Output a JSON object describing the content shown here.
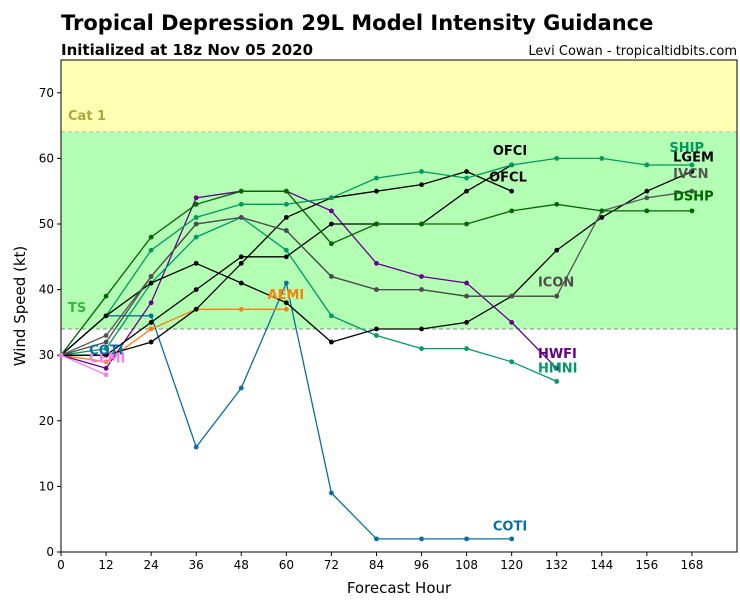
{
  "chart_data": {
    "type": "line",
    "title": "Tropical Depression 29L Model Intensity Guidance",
    "subtitle": "Initialized at 18z Nov 05 2020",
    "credit": "Levi Cowan - tropicaltidbits.com",
    "xlabel": "Forecast Hour",
    "ylabel": "Wind Speed (kt)",
    "xlim": [
      0,
      180
    ],
    "ylim": [
      0,
      75
    ],
    "xticks": [
      0,
      12,
      24,
      36,
      48,
      60,
      72,
      84,
      96,
      108,
      120,
      132,
      144,
      156,
      168
    ],
    "yticks": [
      0,
      10,
      20,
      30,
      40,
      50,
      60,
      70
    ],
    "bands": [
      {
        "label": "Cat 1",
        "from": 64,
        "to": 75,
        "color": "#ffffb3",
        "label_color": "#a9a93c"
      },
      {
        "label": "TS",
        "from": 34,
        "to": 64,
        "color": "#b3ffb3",
        "label_color": "#3cb33c"
      }
    ],
    "series": [
      {
        "name": "COTI",
        "color": "#0a6ea0",
        "x": [
          0,
          12,
          24,
          36,
          48,
          60,
          72,
          84,
          96,
          108,
          120
        ],
        "y": [
          30,
          36,
          36,
          16,
          25,
          41,
          9,
          2,
          2,
          2,
          2
        ]
      },
      {
        "name": "AEMI",
        "color": "#ff7f0e",
        "x": [
          0,
          12,
          24,
          36,
          48,
          60
        ],
        "y": [
          30,
          29,
          34,
          37,
          37,
          37
        ]
      },
      {
        "name": "HWFI",
        "color": "#66008c",
        "x": [
          0,
          12,
          24,
          36,
          48,
          60,
          72,
          84,
          96,
          108,
          120,
          132
        ],
        "y": [
          30,
          28,
          38,
          54,
          55,
          55,
          52,
          44,
          42,
          41,
          35,
          28
        ]
      },
      {
        "name": "HMNI",
        "color": "#009966",
        "x": [
          0,
          12,
          24,
          36,
          48,
          60,
          72,
          84,
          96,
          108,
          120,
          132
        ],
        "y": [
          30,
          31,
          41,
          48,
          51,
          46,
          36,
          33,
          31,
          31,
          29,
          26
        ]
      },
      {
        "name": "OFCI",
        "color": "#000000",
        "x": [
          0,
          12,
          24,
          36,
          48,
          60,
          72,
          84,
          96,
          108,
          120
        ],
        "y": [
          30,
          30,
          35,
          40,
          45,
          45,
          50,
          50,
          50,
          55,
          59
        ]
      },
      {
        "name": "OFCL",
        "color": "#000000",
        "x": [
          0,
          12,
          24,
          36,
          48,
          60,
          72,
          84,
          96,
          108,
          120
        ],
        "y": [
          30,
          30,
          32,
          37,
          44,
          51,
          54,
          55,
          56,
          58,
          55
        ]
      },
      {
        "name": "SHIP",
        "color": "#00995c",
        "x": [
          0,
          12,
          24,
          36,
          48,
          60,
          72,
          84,
          96,
          108,
          120,
          132,
          144,
          156,
          168
        ],
        "y": [
          30,
          36,
          46,
          51,
          53,
          53,
          54,
          57,
          58,
          57,
          59,
          60,
          60,
          59,
          59
        ]
      },
      {
        "name": "LGEM",
        "color": "#000000",
        "x": [
          0,
          12,
          24,
          36,
          48,
          60,
          72,
          84,
          96,
          108,
          120,
          132,
          144,
          156,
          168
        ],
        "y": [
          30,
          36,
          41,
          44,
          41,
          38,
          32,
          34,
          34,
          35,
          39,
          46,
          51,
          55,
          58
        ]
      },
      {
        "name": "IVCN",
        "color": "#555555",
        "x": [
          0,
          12,
          24,
          36,
          48,
          60,
          72,
          84,
          96,
          108,
          120,
          132,
          144,
          156,
          168
        ],
        "y": [
          30,
          33,
          42,
          50,
          51,
          49,
          42,
          40,
          40,
          39,
          39,
          39,
          52,
          54,
          55
        ]
      },
      {
        "name": "DSHP",
        "color": "#006600",
        "x": [
          0,
          12,
          24,
          36,
          48,
          60,
          72,
          84,
          96,
          108,
          120,
          132,
          144,
          156,
          168
        ],
        "y": [
          30,
          39,
          48,
          53,
          55,
          55,
          47,
          50,
          50,
          50,
          52,
          53,
          52,
          52,
          52
        ]
      },
      {
        "name": "ICON",
        "color": "#4d4d4d",
        "x": [
          0,
          12,
          24,
          36,
          48,
          60,
          72,
          84,
          96,
          108,
          120,
          132
        ],
        "y": [
          30,
          32,
          42,
          50,
          51,
          49,
          42,
          40,
          40,
          39,
          39,
          39
        ]
      },
      {
        "name": "CEMI",
        "color": "#ee82ee",
        "x": [
          0,
          12
        ],
        "y": [
          30,
          27
        ]
      }
    ],
    "annotations": [
      {
        "text": "SHIP",
        "x": 162,
        "y": 61,
        "color": "#00995c"
      },
      {
        "text": "LGEM",
        "x": 163,
        "y": 59.5,
        "color": "#000000"
      },
      {
        "text": "IVCN",
        "x": 163,
        "y": 57,
        "color": "#555555"
      },
      {
        "text": "DSHP",
        "x": 163,
        "y": 53.6,
        "color": "#006600"
      },
      {
        "text": "OFCI",
        "x": 115,
        "y": 60.5,
        "color": "#000000"
      },
      {
        "text": "OFCL",
        "x": 114,
        "y": 56.5,
        "color": "#000000"
      },
      {
        "text": "ICON",
        "x": 127,
        "y": 40.5,
        "color": "#4d4d4d"
      },
      {
        "text": "AEMI",
        "x": 55,
        "y": 38.6,
        "color": "#ff7f0e"
      },
      {
        "text": "HWFI",
        "x": 127,
        "y": 29.6,
        "color": "#66008c"
      },
      {
        "text": "HMNI",
        "x": 127,
        "y": 27.4,
        "color": "#009966"
      },
      {
        "text": "COTI",
        "x": 115,
        "y": 3.3,
        "color": "#0a6ea0"
      },
      {
        "text": "CEMI",
        "x": 7.5,
        "y": 28.9,
        "color": "#ee82ee"
      },
      {
        "text": "COTI",
        "x": 7.5,
        "y": 30.1,
        "color": "#0a6ea0"
      }
    ]
  }
}
